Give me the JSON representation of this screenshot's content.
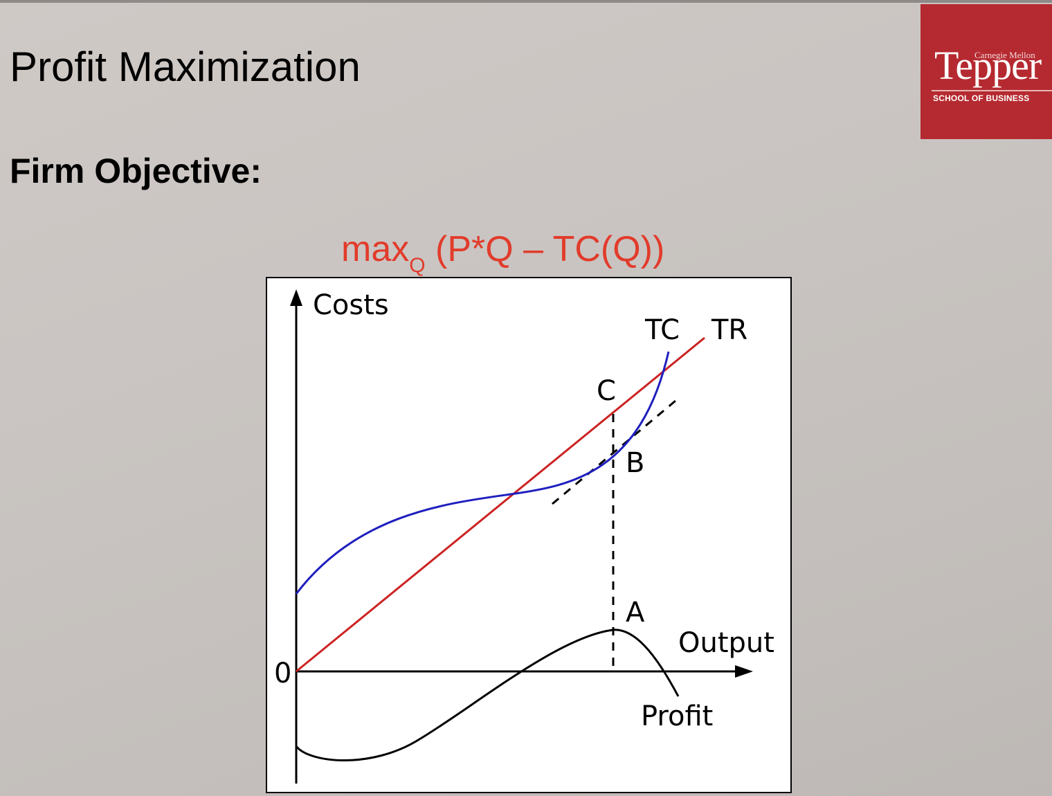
{
  "slide": {
    "title": "Profit Maximization",
    "subtitle": "Firm Objective:",
    "formula": {
      "prefix": "max",
      "subscript": "Q",
      "body": " (P*Q – TC(Q))",
      "color": "#e23b2b"
    }
  },
  "logo": {
    "university": "Carnegie Mellon",
    "name": "Tepper",
    "school": "SCHOOL OF BUSINESS",
    "color": "#b52a30"
  },
  "diagram": {
    "y_axis_label": "Costs",
    "x_axis_label": "Output",
    "origin_label": "0",
    "curve_labels": {
      "tc": "TC",
      "tr": "TR",
      "profit": "Profit"
    },
    "point_labels": {
      "a": "A",
      "b": "B",
      "c": "C"
    },
    "colors": {
      "tc": "#1f1fbf",
      "tr": "#cc2222",
      "profit": "#000000"
    }
  }
}
